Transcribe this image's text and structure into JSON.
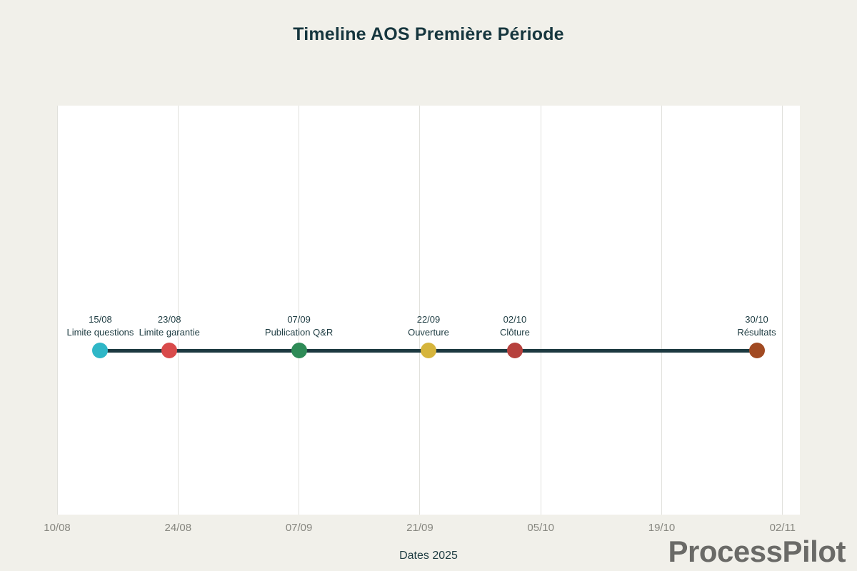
{
  "page": {
    "title": "Timeline AOS Première Période",
    "watermark": "ProcessPilot",
    "background_color": "#f1f0ea",
    "plot_background_color": "#ffffff"
  },
  "chart_data": {
    "type": "scatter",
    "subtype": "event-timeline",
    "title": "Timeline AOS Première Période",
    "xlabel": "Dates 2025",
    "ylabel": "",
    "grid": true,
    "legend": false,
    "x_axis": {
      "tick_labels": [
        "10/08",
        "24/08",
        "07/09",
        "21/09",
        "05/10",
        "19/10",
        "02/11"
      ],
      "tick_days": [
        0,
        14,
        28,
        42,
        56,
        70,
        84
      ],
      "range_days": [
        0,
        86
      ],
      "start_date": "10/08",
      "end_date": "04/11"
    },
    "line_color": "#1c3940",
    "gridline_color": "#e1e1dc",
    "tick_color": "#86867f",
    "label_color": "#1e3c42",
    "milestones": [
      {
        "date": "15/08",
        "label": "Limite questions",
        "day": 5,
        "color": "#2fb7c7"
      },
      {
        "date": "23/08",
        "label": "Limite garantie",
        "day": 13,
        "color": "#d94b4b"
      },
      {
        "date": "07/09",
        "label": "Publication Q&R",
        "day": 28,
        "color": "#2e8b57"
      },
      {
        "date": "22/09",
        "label": "Ouverture",
        "day": 43,
        "color": "#d6b53c"
      },
      {
        "date": "02/10",
        "label": "Clôture",
        "day": 53,
        "color": "#b6413d"
      },
      {
        "date": "30/10",
        "label": "Résultats",
        "day": 81,
        "color": "#a14a22"
      }
    ]
  }
}
